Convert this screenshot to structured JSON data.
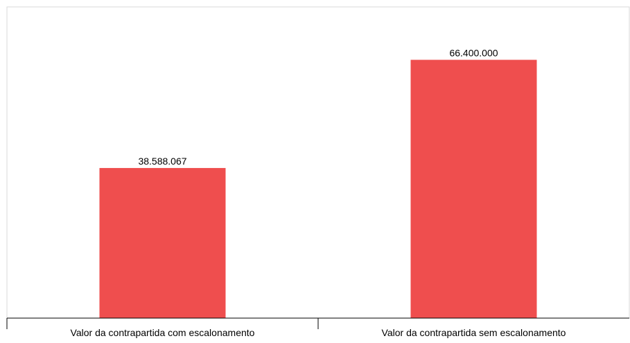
{
  "chart_data": {
    "type": "bar",
    "categories": [
      "Valor da contrapartida com escalonamento",
      "Valor da contrapartida sem escalonamento"
    ],
    "values": [
      38588067,
      66400000
    ],
    "data_labels": [
      "38.588.067",
      "66.400.000"
    ],
    "title": "",
    "xlabel": "",
    "ylabel": "",
    "ylim": [
      0,
      80000000
    ],
    "grid": false,
    "legend": "none",
    "bar_color": "#ef4e4e",
    "axis_color": "#000000",
    "border_color": "#d9d9d9"
  }
}
